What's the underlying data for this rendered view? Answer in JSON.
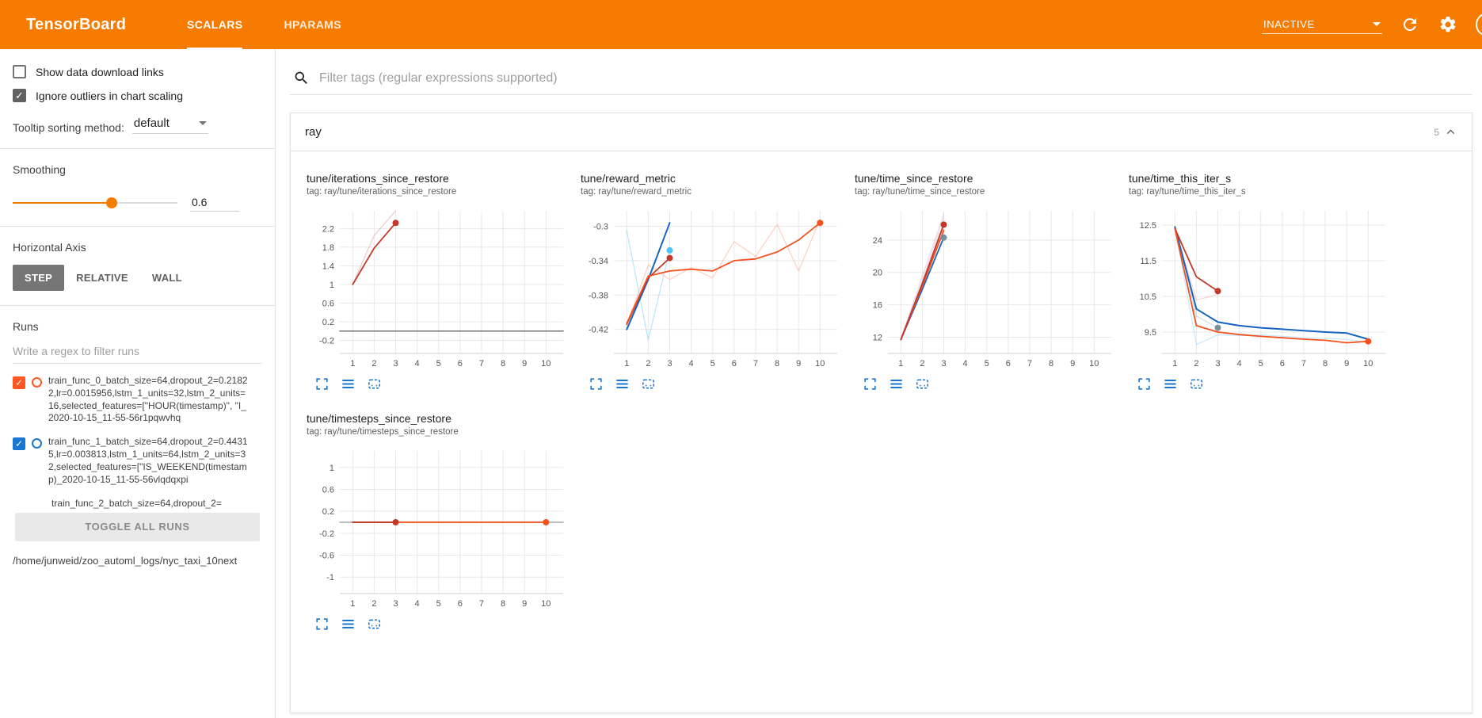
{
  "header": {
    "title": "TensorBoard",
    "tabs": [
      {
        "label": "SCALARS",
        "active": true
      },
      {
        "label": "HPARAMS",
        "active": false
      }
    ],
    "status": "INACTIVE"
  },
  "colors": {
    "header_bg": "#f57c00",
    "accent_orange": "#f57c00",
    "icon_blue": "#1976d2"
  },
  "sidebar": {
    "checkboxes": [
      {
        "label": "Show data download links",
        "checked": false
      },
      {
        "label": "Ignore outliers in chart scaling",
        "checked": true
      }
    ],
    "tooltip_sort": {
      "label": "Tooltip sorting method:",
      "value": "default"
    },
    "smoothing": {
      "label": "Smoothing",
      "value": "0.6",
      "percent": 60
    },
    "axis": {
      "label": "Horizontal Axis",
      "options": [
        "STEP",
        "RELATIVE",
        "WALL"
      ],
      "selected": "STEP"
    },
    "runs": {
      "label": "Runs",
      "filter_placeholder": "Write a regex to filter runs",
      "items": [
        {
          "label": "train_func_0_batch_size=64,dropout_2=0.21822,lr=0.0015956,lstm_1_units=32,lstm_2_units=16,selected_features=[\"HOUR(timestamp)\", \"I_2020-10-15_11-55-56r1pqwvhq",
          "color": "#ff5722",
          "checked": true,
          "partial": false
        },
        {
          "label": "train_func_1_batch_size=64,dropout_2=0.44315,lr=0.003813,lstm_1_units=64,lstm_2_units=32,selected_features=[\"IS_WEEKEND(timestamp)_2020-10-15_11-55-56vlqdqxpi",
          "color": "#1976d2",
          "checked": true,
          "partial": false
        },
        {
          "label": "train_func_2_batch_size=64,dropout_2=",
          "color": "#9e9e9e",
          "checked": false,
          "partial": true
        }
      ],
      "toggle_all_label": "TOGGLE ALL RUNS",
      "log_dir": "/home/junweid/zoo_automl_logs/nyc_taxi_10next"
    }
  },
  "main": {
    "filter_placeholder": "Filter tags (regular expressions supported)",
    "section": {
      "title": "ray",
      "count": "5"
    }
  },
  "chart_data": [
    {
      "type": "line",
      "title": "tune/iterations_since_restore",
      "tag": "tag: ray/tune/iterations_since_restore",
      "xlim": [
        0.4,
        10.8
      ],
      "ylim": [
        -0.48,
        2.58
      ],
      "xticks": [
        1,
        2,
        3,
        4,
        5,
        6,
        7,
        8,
        9,
        10
      ],
      "yticks": [
        -0.2,
        0.2,
        0.6,
        1,
        1.4,
        1.8,
        2.2
      ],
      "series": [
        {
          "name": "run0-raw",
          "color": "#e57373",
          "opacity": 0.4,
          "width": 1.2,
          "x": [
            1,
            2,
            3
          ],
          "y": [
            1,
            2.05,
            2.58
          ]
        },
        {
          "name": "flat-zero",
          "color": "#757575",
          "opacity": 1,
          "width": 1.5,
          "x": [
            0.4,
            10.8
          ],
          "y": [
            0,
            0
          ]
        },
        {
          "name": "run0-smoothed",
          "color": "#c0392b",
          "opacity": 1,
          "width": 1.8,
          "x": [
            1,
            2,
            3
          ],
          "y": [
            1,
            1.78,
            2.32
          ],
          "end_dot": true
        }
      ]
    },
    {
      "type": "line",
      "title": "tune/reward_metric",
      "tag": "tag: ray/tune/reward_metric",
      "xlim": [
        0.4,
        10.8
      ],
      "ylim": [
        -0.448,
        -0.282
      ],
      "xticks": [
        1,
        2,
        3,
        4,
        5,
        6,
        7,
        8,
        9,
        10
      ],
      "yticks": [
        -0.42,
        -0.38,
        -0.34,
        -0.3
      ],
      "series": [
        {
          "name": "run0-raw",
          "color": "#ff8a65",
          "opacity": 0.4,
          "width": 1.2,
          "x": [
            1,
            2,
            3,
            4,
            5,
            6,
            7,
            8,
            9,
            10
          ],
          "y": [
            -0.415,
            -0.345,
            -0.362,
            -0.348,
            -0.36,
            -0.318,
            -0.335,
            -0.298,
            -0.352,
            -0.292
          ]
        },
        {
          "name": "run1-raw",
          "color": "#81d4fa",
          "opacity": 0.55,
          "width": 1.3,
          "x": [
            1,
            2,
            3
          ],
          "y": [
            -0.305,
            -0.432,
            -0.328
          ],
          "end_dot": true,
          "dot_color": "#4fc3f7"
        },
        {
          "name": "run1-smoothed",
          "color": "#1565c0",
          "opacity": 1,
          "width": 2,
          "x": [
            1,
            2,
            3
          ],
          "y": [
            -0.42,
            -0.362,
            -0.296
          ]
        },
        {
          "name": "run2-smoothed",
          "color": "#c0392b",
          "opacity": 1,
          "width": 1.8,
          "x": [
            1,
            2,
            3
          ],
          "y": [
            -0.414,
            -0.36,
            -0.337
          ],
          "end_dot": true
        },
        {
          "name": "run0-smoothed",
          "color": "#f4511e",
          "opacity": 1,
          "width": 1.8,
          "x": [
            1,
            2,
            3,
            4,
            5,
            6,
            7,
            8,
            9,
            10
          ],
          "y": [
            -0.413,
            -0.358,
            -0.352,
            -0.35,
            -0.352,
            -0.34,
            -0.338,
            -0.33,
            -0.316,
            -0.296
          ],
          "end_dot": true
        }
      ]
    },
    {
      "type": "line",
      "title": "tune/time_since_restore",
      "tag": "tag: ray/tune/time_since_restore",
      "xlim": [
        0.4,
        10.8
      ],
      "ylim": [
        10.0,
        27.6
      ],
      "xticks": [
        1,
        2,
        3,
        4,
        5,
        6,
        7,
        8,
        9,
        10
      ],
      "yticks": [
        12,
        16,
        20,
        24
      ],
      "series": [
        {
          "name": "raw-a",
          "color": "#b39ddb",
          "opacity": 0.35,
          "width": 1.2,
          "x": [
            1,
            2,
            3
          ],
          "y": [
            11.8,
            19.5,
            27.2
          ]
        },
        {
          "name": "raw-b",
          "color": "#ef9a9a",
          "opacity": 0.35,
          "width": 1.2,
          "x": [
            1,
            2,
            3
          ],
          "y": [
            11.8,
            19.0,
            26.8
          ]
        },
        {
          "name": "raw-c",
          "color": "#9e9e9e",
          "opacity": 0.35,
          "width": 1.2,
          "x": [
            1,
            2,
            3
          ],
          "y": [
            11.8,
            18.8,
            26.2
          ]
        },
        {
          "name": "run1-smoothed",
          "color": "#1565c0",
          "opacity": 1,
          "width": 1.8,
          "x": [
            1,
            2,
            3
          ],
          "y": [
            11.7,
            17.9,
            24.3
          ],
          "end_dot": true,
          "dot_color": "#78909c"
        },
        {
          "name": "run0-smoothed",
          "color": "#f4511e",
          "opacity": 1,
          "width": 1.8,
          "x": [
            1,
            2,
            3
          ],
          "y": [
            11.7,
            18.3,
            25.2
          ]
        },
        {
          "name": "run2-smoothed",
          "color": "#c0392b",
          "opacity": 1,
          "width": 1.8,
          "x": [
            1,
            2,
            3
          ],
          "y": [
            11.7,
            18.6,
            25.9
          ],
          "end_dot": true
        }
      ]
    },
    {
      "type": "line",
      "title": "tune/time_this_iter_s",
      "tag": "tag: ray/tune/time_this_iter_s",
      "xlim": [
        0.4,
        10.8
      ],
      "ylim": [
        8.9,
        12.9
      ],
      "xticks": [
        1,
        2,
        3,
        4,
        5,
        6,
        7,
        8,
        9,
        10
      ],
      "yticks": [
        9.5,
        10.5,
        11.5,
        12.5
      ],
      "series": [
        {
          "name": "run1-raw",
          "color": "#81d4fa",
          "opacity": 0.45,
          "width": 1.2,
          "x": [
            1,
            2,
            3,
            4,
            5,
            6,
            7,
            8,
            9,
            10
          ],
          "y": [
            12.45,
            9.15,
            9.42,
            9.4,
            9.42,
            9.38,
            9.35,
            9.32,
            9.3,
            9.2
          ]
        },
        {
          "name": "run0-raw",
          "color": "#ef9a9a",
          "opacity": 0.4,
          "width": 1.2,
          "x": [
            1,
            2,
            3
          ],
          "y": [
            12.4,
            10.4,
            10.55
          ]
        },
        {
          "name": "runx-raw",
          "color": "#b0bec5",
          "opacity": 0.55,
          "width": 1.2,
          "x": [
            1,
            2,
            3
          ],
          "y": [
            12.45,
            9.95,
            9.62
          ],
          "end_dot": true,
          "dot_color": "#78909c"
        },
        {
          "name": "run1-smoothed",
          "color": "#1565c0",
          "opacity": 1,
          "width": 2,
          "x": [
            1,
            2,
            3,
            4,
            5,
            6,
            7,
            8,
            9,
            10
          ],
          "y": [
            12.45,
            10.15,
            9.78,
            9.68,
            9.62,
            9.58,
            9.54,
            9.5,
            9.47,
            9.3
          ]
        },
        {
          "name": "run2-smoothed",
          "color": "#c0392b",
          "opacity": 1,
          "width": 1.8,
          "x": [
            1,
            2,
            3
          ],
          "y": [
            12.4,
            11.05,
            10.65
          ],
          "end_dot": true
        },
        {
          "name": "run0-smoothed",
          "color": "#f4511e",
          "opacity": 1,
          "width": 1.8,
          "x": [
            1,
            2,
            3,
            4,
            5,
            6,
            7,
            8,
            9,
            10
          ],
          "y": [
            12.4,
            9.68,
            9.5,
            9.43,
            9.38,
            9.34,
            9.3,
            9.27,
            9.2,
            9.24
          ],
          "end_dot": true
        }
      ]
    },
    {
      "type": "line",
      "title": "tune/timesteps_since_restore",
      "tag": "tag: ray/tune/timesteps_since_restore",
      "xlim": [
        0.4,
        10.8
      ],
      "ylim": [
        -1.3,
        1.3
      ],
      "xticks": [
        1,
        2,
        3,
        4,
        5,
        6,
        7,
        8,
        9,
        10
      ],
      "yticks": [
        -1,
        -0.6,
        -0.2,
        0.2,
        0.6,
        1
      ],
      "series": [
        {
          "name": "flat",
          "color": "#9e9e9e",
          "opacity": 0.9,
          "width": 1.4,
          "x": [
            0.4,
            10.8
          ],
          "y": [
            0,
            0
          ]
        },
        {
          "name": "run0-smoothed",
          "color": "#f4511e",
          "opacity": 1,
          "width": 1.8,
          "x": [
            1,
            2,
            3,
            4,
            5,
            6,
            7,
            8,
            9,
            10
          ],
          "y": [
            0,
            0,
            0,
            0,
            0,
            0,
            0,
            0,
            0,
            0
          ],
          "end_dot": true
        },
        {
          "name": "run2-smoothed",
          "color": "#c0392b",
          "opacity": 1,
          "width": 1.8,
          "x": [
            1,
            2,
            3
          ],
          "y": [
            0,
            0,
            0
          ],
          "end_dot": true
        }
      ]
    }
  ]
}
